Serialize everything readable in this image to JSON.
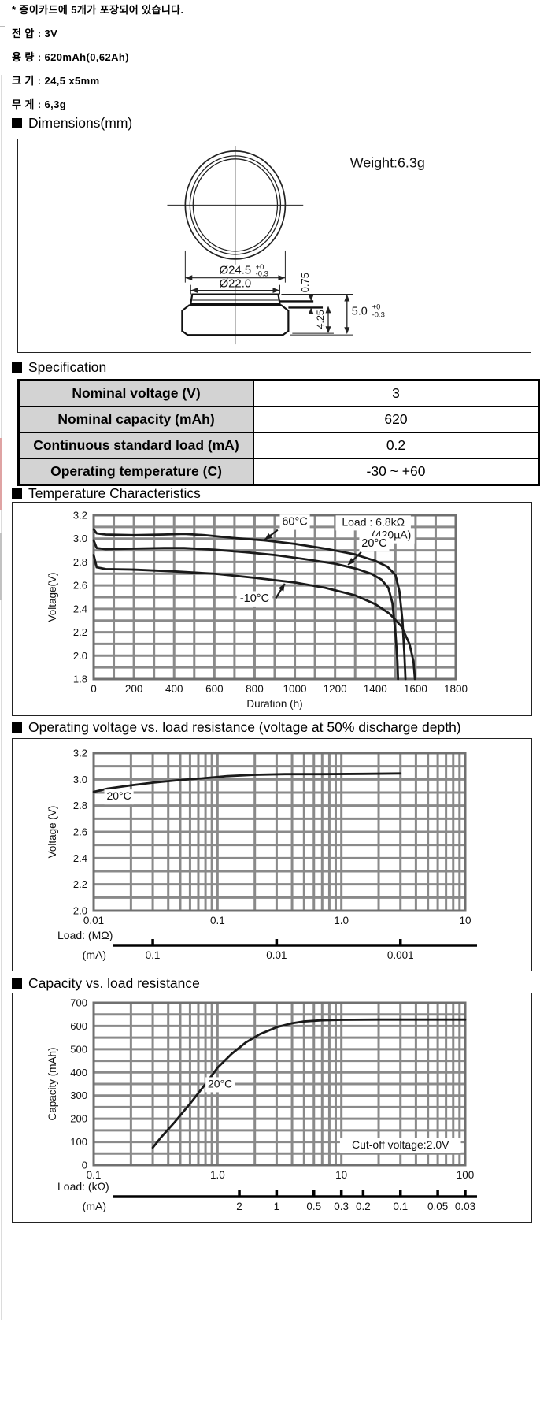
{
  "intro_lines": [
    "* 종이카드에 5개가 포장되어 있습니다.",
    "전 압 : 3V",
    "용 량 : 620mAh(0,62Ah)",
    "크 기 : 24,5 x5mm",
    "무 게 : 6,3g"
  ],
  "sections": [
    {
      "title": "Dimensions(mm)"
    },
    {
      "title": "Specification"
    },
    {
      "title": "Temperature Characteristics"
    },
    {
      "title": "Operating voltage vs. load resistance (voltage at 50% discharge depth)"
    },
    {
      "title": "Capacity vs. load resistance"
    }
  ],
  "dimensions": {
    "weight": "Weight:6.3g",
    "dia_outer": "Ø24.5",
    "dia_outer_tol_top": "+0",
    "dia_outer_tol_bot": "-0.3",
    "dia_inner": "Ø22.0",
    "lip_height": "0.75",
    "inner_height": "4.25",
    "total_height": "5.0",
    "total_height_tol_top": "+0",
    "total_height_tol_bot": "-0.3"
  },
  "spec": {
    "rows": [
      {
        "label": "Nominal voltage (V)",
        "value": "3"
      },
      {
        "label": "Nominal capacity (mAh)",
        "value": "620"
      },
      {
        "label": "Continuous standard load (mA)",
        "value": "0.2"
      },
      {
        "label": "Operating temperature (C)",
        "value": "-30 ~ +60"
      }
    ]
  },
  "colors": {
    "grid": "#8a8a8a",
    "frame": "#707070",
    "curve": "#1a1a1a",
    "table_header_bg": "#d3d3d3",
    "edge_pink": "#dfa3a3",
    "edge_gray": "#dcdcdc"
  },
  "chart_data": [
    {
      "type": "line",
      "title": "Temperature Characteristics",
      "xlabel": "Duration (h)",
      "ylabel": "Voltage(V)",
      "x": {
        "scale": "linear",
        "min": 0,
        "max": 1800,
        "grid": 100,
        "ticks": [
          {
            "v": 0,
            "l": "0"
          },
          {
            "v": 200,
            "l": "200"
          },
          {
            "v": 400,
            "l": "400"
          },
          {
            "v": 600,
            "l": "600"
          },
          {
            "v": 800,
            "l": "800"
          },
          {
            "v": 1000,
            "l": "1000"
          },
          {
            "v": 1200,
            "l": "1200"
          },
          {
            "v": 1400,
            "l": "1400"
          },
          {
            "v": 1600,
            "l": "1600"
          },
          {
            "v": 1800,
            "l": "1800"
          }
        ]
      },
      "y": {
        "min": 1.8,
        "max": 3.2,
        "grid": 0.1,
        "ticks": [
          {
            "v": 3.2,
            "l": "3.2"
          },
          {
            "v": 3.0,
            "l": "3.0"
          },
          {
            "v": 2.8,
            "l": "2.8"
          },
          {
            "v": 2.6,
            "l": "2.6"
          },
          {
            "v": 2.4,
            "l": "2.4"
          },
          {
            "v": 2.2,
            "l": "2.2"
          },
          {
            "v": 2.0,
            "l": "2.0"
          },
          {
            "v": 1.8,
            "l": "1.8"
          }
        ]
      },
      "series": [
        {
          "name": "60°C",
          "points": [
            [
              0,
              3.08
            ],
            [
              15,
              3.045
            ],
            [
              60,
              3.035
            ],
            [
              200,
              3.03
            ],
            [
              350,
              3.035
            ],
            [
              450,
              3.04
            ],
            [
              550,
              3.03
            ],
            [
              700,
              3.005
            ],
            [
              850,
              2.985
            ],
            [
              1000,
              2.955
            ],
            [
              1150,
              2.915
            ],
            [
              1300,
              2.865
            ],
            [
              1400,
              2.81
            ],
            [
              1460,
              2.76
            ],
            [
              1500,
              2.69
            ],
            [
              1520,
              2.55
            ],
            [
              1535,
              2.3
            ],
            [
              1545,
              2.0
            ],
            [
              1550,
              1.8
            ]
          ]
        },
        {
          "name": "20°C",
          "points": [
            [
              0,
              2.985
            ],
            [
              15,
              2.92
            ],
            [
              60,
              2.91
            ],
            [
              200,
              2.915
            ],
            [
              350,
              2.92
            ],
            [
              450,
              2.92
            ],
            [
              600,
              2.905
            ],
            [
              750,
              2.885
            ],
            [
              900,
              2.86
            ],
            [
              1050,
              2.825
            ],
            [
              1200,
              2.785
            ],
            [
              1300,
              2.745
            ],
            [
              1380,
              2.7
            ],
            [
              1430,
              2.65
            ],
            [
              1465,
              2.58
            ],
            [
              1485,
              2.45
            ],
            [
              1500,
              2.2
            ],
            [
              1510,
              1.95
            ],
            [
              1513,
              1.8
            ]
          ]
        },
        {
          "name": "-10°C",
          "points": [
            [
              0,
              2.86
            ],
            [
              15,
              2.755
            ],
            [
              60,
              2.74
            ],
            [
              200,
              2.735
            ],
            [
              400,
              2.72
            ],
            [
              600,
              2.7
            ],
            [
              800,
              2.665
            ],
            [
              1000,
              2.625
            ],
            [
              1150,
              2.58
            ],
            [
              1300,
              2.515
            ],
            [
              1400,
              2.44
            ],
            [
              1470,
              2.36
            ],
            [
              1530,
              2.25
            ],
            [
              1570,
              2.1
            ],
            [
              1590,
              1.95
            ],
            [
              1597,
              1.8
            ]
          ]
        }
      ],
      "annotations": [
        {
          "text": "60°C",
          "x": 1000,
          "y": 3.115,
          "fs": 14.5,
          "bg": true,
          "arrow": [
            915,
            3.075,
            850,
            2.99
          ]
        },
        {
          "text": "Load : 6.8kΩ",
          "x": 1390,
          "y": 3.11,
          "fs": 14,
          "bg": true
        },
        {
          "text": "(420µA)",
          "x": 1480,
          "y": 3.0,
          "fs": 14,
          "bg": true
        },
        {
          "text": "20°C",
          "x": 1395,
          "y": 2.93,
          "fs": 14.5,
          "bg": true,
          "arrow": [
            1330,
            2.885,
            1265,
            2.775
          ]
        },
        {
          "text": "-10°C",
          "x": 800,
          "y": 2.46,
          "fs": 14.5,
          "bg": true,
          "arrow": [
            905,
            2.49,
            950,
            2.615
          ]
        }
      ]
    },
    {
      "type": "line",
      "title": "Operating voltage vs. load resistance (voltage at 50% discharge depth)",
      "xlabel": "",
      "ylabel": "Voltage (V)",
      "x": {
        "scale": "log",
        "min": 0.01,
        "max": 10,
        "ticks": [
          {
            "v": 0.01,
            "l": "0.01"
          },
          {
            "v": 0.1,
            "l": "0.1"
          },
          {
            "v": 1,
            "l": "1.0"
          },
          {
            "v": 10,
            "l": "10"
          }
        ]
      },
      "y": {
        "min": 2.0,
        "max": 3.2,
        "grid": 0.1,
        "ticks": [
          {
            "v": 3.2,
            "l": "3.2"
          },
          {
            "v": 3.0,
            "l": "3.0"
          },
          {
            "v": 2.8,
            "l": "2.8"
          },
          {
            "v": 2.6,
            "l": "2.6"
          },
          {
            "v": 2.4,
            "l": "2.4"
          },
          {
            "v": 2.2,
            "l": "2.2"
          },
          {
            "v": 2.0,
            "l": "2.0"
          }
        ]
      },
      "series": [
        {
          "name": "20°C",
          "points": [
            [
              0.01,
              2.905
            ],
            [
              0.013,
              2.93
            ],
            [
              0.02,
              2.955
            ],
            [
              0.03,
              2.975
            ],
            [
              0.05,
              2.995
            ],
            [
              0.08,
              3.01
            ],
            [
              0.12,
              3.025
            ],
            [
              0.2,
              3.035
            ],
            [
              0.35,
              3.04
            ],
            [
              0.7,
              3.04
            ],
            [
              1.5,
              3.042
            ],
            [
              3,
              3.045
            ]
          ]
        }
      ],
      "annotations": [
        {
          "text": "20°C",
          "x": 0.016,
          "y": 2.845,
          "fs": 14,
          "bg": true
        }
      ],
      "secondary": {
        "axis_label": "Load: (MΩ)",
        "unit_label": "(mA)",
        "ticks": [
          {
            "l": "0.1",
            "v": 0.03
          },
          {
            "l": "0.01",
            "v": 0.3
          },
          {
            "l": "0.001",
            "v": 3
          }
        ]
      }
    },
    {
      "type": "line",
      "title": "Capacity vs. load resistance",
      "xlabel": "",
      "ylabel": "Capacity (mAh)",
      "x": {
        "scale": "log",
        "min": 0.1,
        "max": 100,
        "ticks": [
          {
            "v": 0.1,
            "l": "0.1"
          },
          {
            "v": 1,
            "l": "1.0"
          },
          {
            "v": 10,
            "l": "10"
          },
          {
            "v": 100,
            "l": "100"
          }
        ]
      },
      "y": {
        "min": 0,
        "max": 700,
        "grid": 50,
        "ticks": [
          {
            "v": 700,
            "l": "700"
          },
          {
            "v": 600,
            "l": "600"
          },
          {
            "v": 500,
            "l": "500"
          },
          {
            "v": 400,
            "l": "400"
          },
          {
            "v": 300,
            "l": "300"
          },
          {
            "v": 200,
            "l": "200"
          },
          {
            "v": 100,
            "l": "100"
          },
          {
            "v": 0,
            "l": "0"
          }
        ]
      },
      "series": [
        {
          "name": "20°C",
          "points": [
            [
              0.3,
              75
            ],
            [
              0.35,
              120
            ],
            [
              0.45,
              185
            ],
            [
              0.6,
              265
            ],
            [
              0.8,
              350
            ],
            [
              1.0,
              420
            ],
            [
              1.3,
              480
            ],
            [
              1.7,
              530
            ],
            [
              2.2,
              565
            ],
            [
              3,
              595
            ],
            [
              4,
              612
            ],
            [
              5,
              620
            ],
            [
              7,
              625
            ],
            [
              10,
              627
            ],
            [
              20,
              628
            ],
            [
              50,
              628
            ],
            [
              100,
              628
            ]
          ]
        }
      ],
      "annotations": [
        {
          "text": "20°C",
          "x": 1.05,
          "y": 335,
          "fs": 14,
          "bg": true
        },
        {
          "text": "Cut-off voltage:2.0V",
          "x": 30,
          "y": 72,
          "fs": 14,
          "bg": true
        }
      ],
      "secondary": {
        "axis_label": "Load: (kΩ)",
        "unit_label": "(mA)",
        "ticks": [
          {
            "l": "2",
            "v": 1.5
          },
          {
            "l": "1",
            "v": 3
          },
          {
            "l": "0.5",
            "v": 6
          },
          {
            "l": "0.3",
            "v": 10
          },
          {
            "l": "0.2",
            "v": 15
          },
          {
            "l": "0.1",
            "v": 30
          },
          {
            "l": "0.05",
            "v": 60
          },
          {
            "l": "0.03",
            "v": 100
          }
        ]
      }
    }
  ]
}
